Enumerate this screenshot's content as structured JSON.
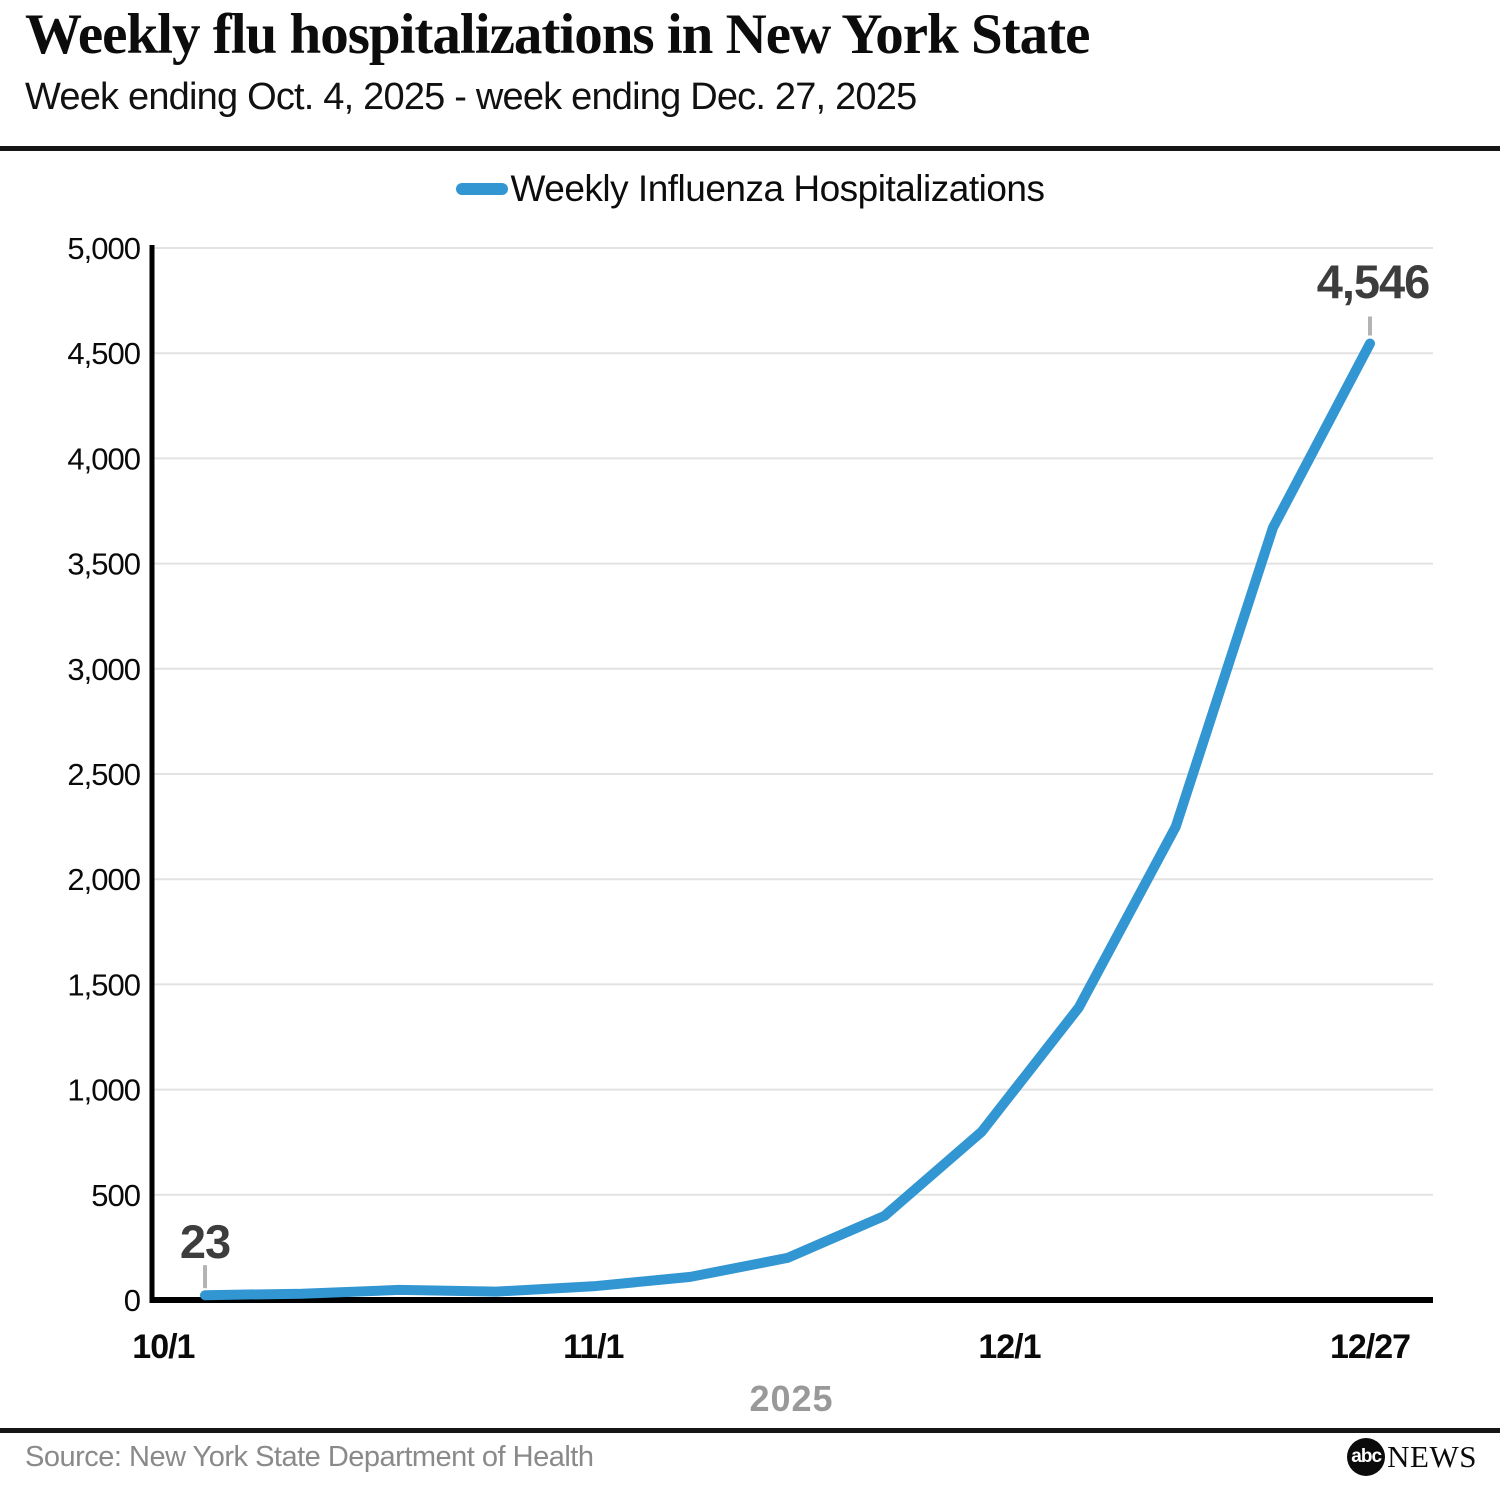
{
  "header": {
    "title": "Weekly flu hospitalizations in New York State",
    "subtitle": "Week ending Oct. 4, 2025 - week ending Dec. 27, 2025"
  },
  "legend": {
    "label": "Weekly Influenza Hospitalizations"
  },
  "chart_data": {
    "type": "line",
    "title": "Weekly flu hospitalizations in New York State",
    "subtitle": "Week ending Oct. 4, 2025 - week ending Dec. 27, 2025",
    "series_name": "Weekly Influenza Hospitalizations",
    "x": [
      "10/4",
      "10/11",
      "10/18",
      "10/25",
      "11/1",
      "11/8",
      "11/15",
      "11/22",
      "11/29",
      "12/6",
      "12/13",
      "12/20",
      "12/27"
    ],
    "day_offsets": [
      3,
      10,
      17,
      24,
      31,
      38,
      45,
      52,
      59,
      66,
      73,
      80,
      87
    ],
    "values": [
      23,
      30,
      48,
      40,
      65,
      110,
      200,
      400,
      800,
      1390,
      2250,
      3670,
      4546
    ],
    "ylim": [
      0,
      5000
    ],
    "yticks": [
      {
        "label": "0",
        "value": 0
      },
      {
        "label": "500",
        "value": 500
      },
      {
        "label": "1,000",
        "value": 1000
      },
      {
        "label": "1,500",
        "value": 1500
      },
      {
        "label": "2,000",
        "value": 2000
      },
      {
        "label": "2,500",
        "value": 2500
      },
      {
        "label": "3,000",
        "value": 3000
      },
      {
        "label": "3,500",
        "value": 3500
      },
      {
        "label": "4,000",
        "value": 4000
      },
      {
        "label": "4,500",
        "value": 4500
      },
      {
        "label": "5,000",
        "value": 5000
      }
    ],
    "xticks": [
      {
        "label": "10/1",
        "day": 0
      },
      {
        "label": "11/1",
        "day": 31
      },
      {
        "label": "12/1",
        "day": 61
      },
      {
        "label": "12/27",
        "day": 87
      }
    ],
    "xaxis_title": "2025",
    "grid": true,
    "legend_position": "top",
    "line_color": "#3296d2",
    "annotation_color": "#3d3d3d",
    "first_point_label": "23",
    "last_point_label": "4,546"
  },
  "footer": {
    "source": "Source: New York State Department of Health",
    "logo_abc": "abc",
    "logo_news": "NEWS"
  }
}
